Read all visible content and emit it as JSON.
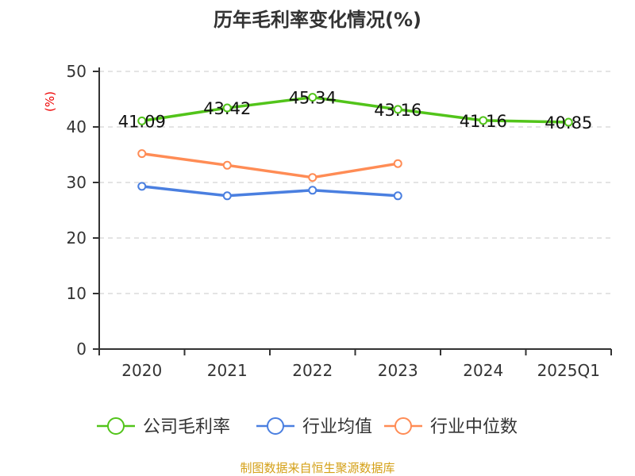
{
  "chart_data": {
    "type": "line",
    "title": "历年毛利率变化情况(%)",
    "ylabel": "(%)",
    "xlabel": "",
    "ylim": [
      0,
      50
    ],
    "yticks": [
      0,
      10,
      20,
      30,
      40,
      50
    ],
    "grid": true,
    "legend_position": "bottom",
    "categories": [
      "2020",
      "2021",
      "2022",
      "2023",
      "2024",
      "2025Q1"
    ],
    "series": [
      {
        "name": "公司毛利率",
        "color": "#52c41a",
        "values": [
          41.09,
          43.42,
          45.34,
          43.16,
          41.16,
          40.85
        ],
        "labels": [
          "41.09",
          "43.42",
          "45.34",
          "43.16",
          "41.16",
          "40.85"
        ]
      },
      {
        "name": "行业均值",
        "color": "#4a7fe0",
        "values": [
          29.3,
          27.6,
          28.6,
          27.6,
          null,
          null
        ]
      },
      {
        "name": "行业中位数",
        "color": "#ff8c55",
        "values": [
          35.2,
          33.1,
          30.9,
          33.4,
          null,
          null
        ]
      }
    ]
  },
  "source": "制图数据来自恒生聚源数据库"
}
